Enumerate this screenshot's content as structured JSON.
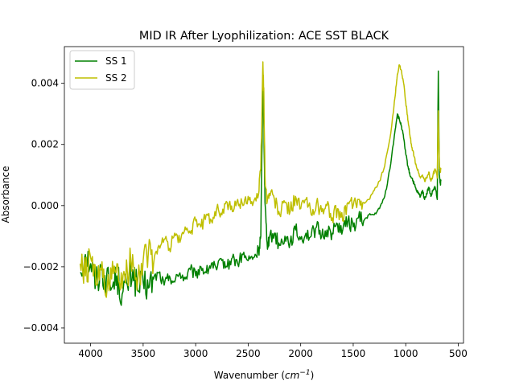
{
  "chart_data": {
    "type": "line",
    "title": "MID IR After Lyophilization: ACE SST BLACK",
    "xlabel_main": "Wavenumber (",
    "xlabel_unit_base": "cm",
    "xlabel_unit_exp": "−1",
    "xlabel_close": ")",
    "ylabel": "Absorbance",
    "xlim": [
      4250,
      450
    ],
    "ylim": [
      -0.0045,
      0.0052
    ],
    "xticks": [
      4000,
      3500,
      3000,
      2500,
      2000,
      1500,
      1000,
      500
    ],
    "xtick_labels": [
      "4000",
      "3500",
      "3000",
      "2500",
      "2000",
      "1500",
      "1000",
      "500"
    ],
    "yticks": [
      -0.004,
      -0.002,
      0.0,
      0.002,
      0.004
    ],
    "ytick_labels": [
      "−0.004",
      "−0.002",
      "0.000",
      "0.002",
      "0.004"
    ],
    "legend_position": "top-left",
    "colors": {
      "ss1": "#008000",
      "ss2": "#bfbf00"
    },
    "series": [
      {
        "name": "SS 1",
        "color": "#008000",
        "x": [
          4100,
          4050,
          4000,
          3950,
          3900,
          3850,
          3800,
          3750,
          3700,
          3650,
          3600,
          3550,
          3500,
          3450,
          3400,
          3350,
          3300,
          3250,
          3200,
          3150,
          3100,
          3050,
          3000,
          2950,
          2900,
          2850,
          2800,
          2750,
          2700,
          2650,
          2600,
          2550,
          2500,
          2450,
          2400,
          2380,
          2360,
          2350,
          2340,
          2320,
          2300,
          2250,
          2200,
          2150,
          2100,
          2050,
          2000,
          1950,
          1900,
          1850,
          1800,
          1750,
          1700,
          1650,
          1600,
          1550,
          1500,
          1450,
          1400,
          1350,
          1300,
          1250,
          1200,
          1150,
          1100,
          1080,
          1060,
          1040,
          1020,
          1000,
          980,
          960,
          940,
          920,
          900,
          880,
          860,
          840,
          820,
          800,
          780,
          760,
          740,
          720,
          700,
          690,
          680,
          670,
          665
        ],
        "y": [
          -0.0022,
          -0.0016,
          -0.0019,
          -0.0025,
          -0.0021,
          -0.0024,
          -0.0027,
          -0.0023,
          -0.0029,
          -0.0026,
          -0.0021,
          -0.0028,
          -0.0025,
          -0.0027,
          -0.0024,
          -0.0022,
          -0.0026,
          -0.0023,
          -0.0025,
          -0.0022,
          -0.0024,
          -0.0021,
          -0.0023,
          -0.002,
          -0.0022,
          -0.0019,
          -0.0021,
          -0.0018,
          -0.002,
          -0.0017,
          -0.0019,
          -0.0016,
          -0.0018,
          -0.0017,
          -0.0015,
          -0.001,
          0.004,
          0.0025,
          0.0001,
          -0.0012,
          -0.0011,
          -0.0009,
          -0.0013,
          -0.001,
          -0.0012,
          -0.0008,
          -0.0011,
          -0.0009,
          -0.001,
          -0.0007,
          -0.001,
          -0.0008,
          -0.0009,
          -0.0006,
          -0.0008,
          -0.0005,
          -0.0007,
          -0.0004,
          -0.0005,
          -0.0003,
          -0.0003,
          -0.0001,
          0.0003,
          0.0012,
          0.0025,
          0.003,
          0.0028,
          0.0026,
          0.0022,
          0.0017,
          0.0013,
          0.001,
          0.0009,
          0.0007,
          0.0005,
          0.0004,
          0.0003,
          0.0005,
          0.0002,
          0.0004,
          0.0006,
          0.0003,
          0.0005,
          0.0006,
          0.0002,
          0.0044,
          0.001,
          0.0007,
          0.0008
        ]
      },
      {
        "name": "SS 2",
        "color": "#bfbf00",
        "x": [
          4100,
          4050,
          4000,
          3950,
          3900,
          3850,
          3800,
          3750,
          3700,
          3650,
          3600,
          3550,
          3500,
          3450,
          3400,
          3350,
          3300,
          3250,
          3200,
          3150,
          3100,
          3050,
          3000,
          2950,
          2900,
          2850,
          2800,
          2750,
          2700,
          2650,
          2600,
          2550,
          2500,
          2450,
          2400,
          2380,
          2360,
          2350,
          2340,
          2320,
          2300,
          2250,
          2200,
          2150,
          2100,
          2050,
          2000,
          1950,
          1900,
          1850,
          1800,
          1750,
          1700,
          1650,
          1600,
          1550,
          1500,
          1450,
          1400,
          1350,
          1300,
          1250,
          1200,
          1150,
          1100,
          1080,
          1060,
          1040,
          1020,
          1000,
          980,
          960,
          940,
          920,
          900,
          880,
          860,
          840,
          820,
          800,
          780,
          760,
          740,
          720,
          700,
          690,
          680,
          670,
          665
        ],
        "y": [
          -0.0019,
          -0.0023,
          -0.0017,
          -0.0026,
          -0.0021,
          -0.003,
          -0.0024,
          -0.0019,
          -0.0027,
          -0.0022,
          -0.0016,
          -0.0024,
          -0.0018,
          -0.0015,
          -0.0019,
          -0.0013,
          -0.0011,
          -0.0014,
          -0.0009,
          -0.0012,
          -0.0007,
          -0.0009,
          -0.0005,
          -0.0007,
          -0.0003,
          -0.0005,
          -0.0001,
          -0.0003,
          0.0001,
          -0.0002,
          0.0002,
          0.0,
          0.0003,
          0.0001,
          0.0004,
          0.0012,
          0.0047,
          0.0035,
          0.001,
          0.0001,
          0.0004,
          0.0002,
          -0.0003,
          0.0001,
          -0.0002,
          0.0003,
          -0.0001,
          0.0002,
          -0.0003,
          0.0001,
          -0.0002,
          0.0,
          -0.0004,
          -0.0001,
          -0.0005,
          0.0001,
          0.0,
          0.0002,
          0.0001,
          0.0002,
          0.0005,
          0.0008,
          0.0013,
          0.0022,
          0.0036,
          0.0043,
          0.0046,
          0.0044,
          0.004,
          0.0034,
          0.0028,
          0.0023,
          0.0019,
          0.0016,
          0.0013,
          0.0011,
          0.0009,
          0.001,
          0.0008,
          0.0009,
          0.0011,
          0.0008,
          0.001,
          0.0012,
          0.0009,
          0.0031,
          0.0013,
          0.0011,
          0.0012
        ]
      }
    ]
  }
}
